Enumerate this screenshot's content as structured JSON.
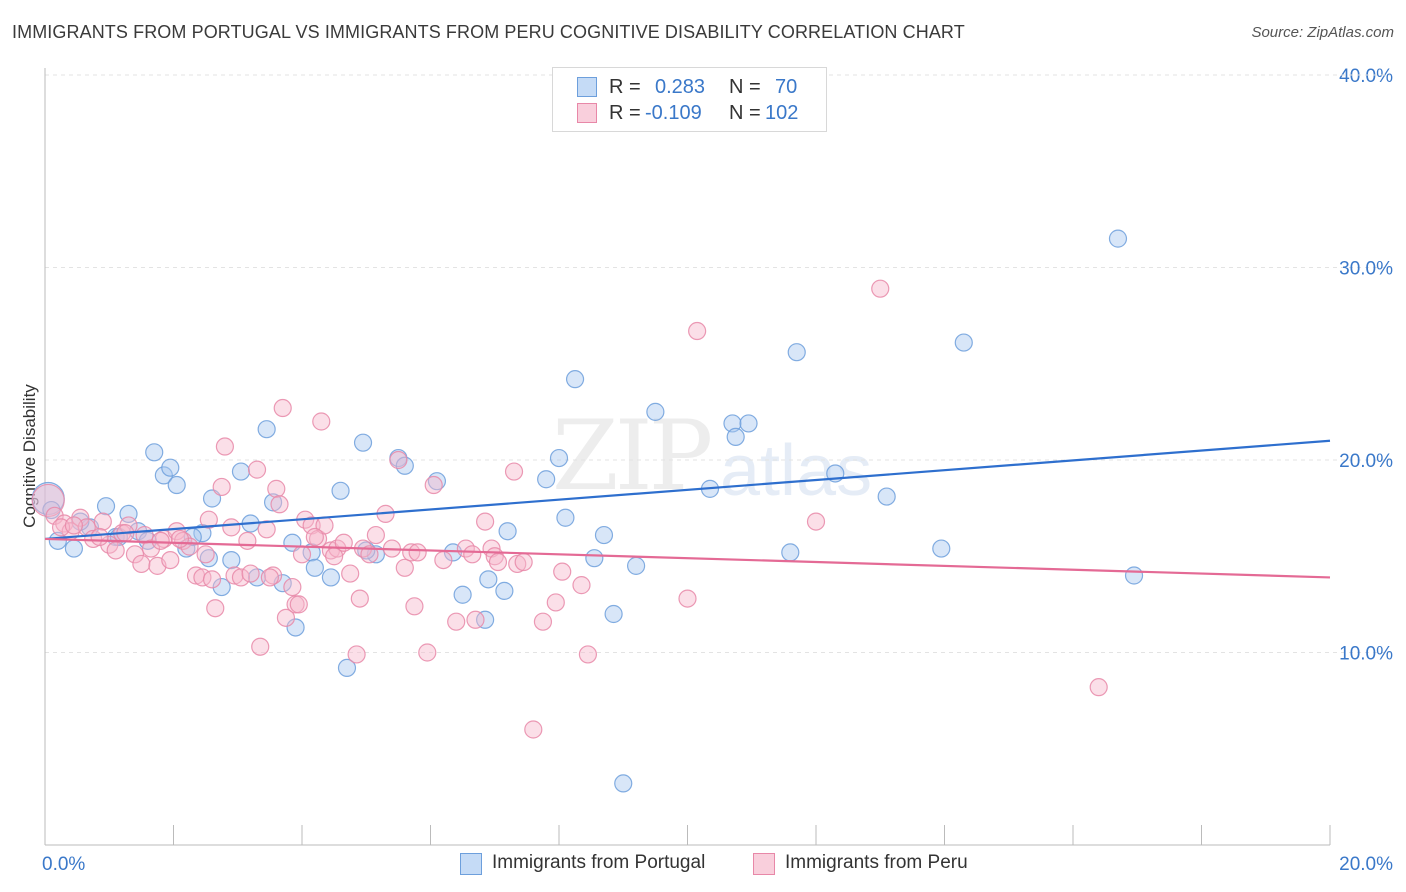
{
  "title": "IMMIGRANTS FROM PORTUGAL VS IMMIGRANTS FROM PERU COGNITIVE DISABILITY CORRELATION CHART",
  "source": "Source: ZipAtlas.com",
  "watermark": {
    "zip": "ZIP",
    "atlas": "atlas"
  },
  "legend": {
    "r_label": "R =",
    "n_label": "N =",
    "series": [
      {
        "r": "0.283",
        "n": "70",
        "color": "#a9c8f0",
        "border": "#6d9fdc"
      },
      {
        "r": "-0.109",
        "n": "102",
        "color": "#f7b8cc",
        "border": "#e888a8"
      }
    ]
  },
  "bottom_legend": [
    {
      "label": "Immigrants from Portugal",
      "color": "#a9c8f0",
      "border": "#6d9fdc"
    },
    {
      "label": "Immigrants from Peru",
      "color": "#f7b8cc",
      "border": "#e888a8"
    }
  ],
  "chart_data": {
    "type": "scatter",
    "title": "IMMIGRANTS FROM PORTUGAL VS IMMIGRANTS FROM PERU COGNITIVE DISABILITY CORRELATION CHART",
    "xlabel": "",
    "ylabel": "Cognitive Disability",
    "xlim": [
      0,
      20
    ],
    "ylim": [
      0,
      40
    ],
    "x_tick_labels": [
      "0.0%",
      "20.0%"
    ],
    "y_ticks": [
      10,
      20,
      30,
      40
    ],
    "y_tick_labels": [
      "10.0%",
      "20.0%",
      "30.0%",
      "40.0%"
    ],
    "grid": true,
    "legend_position": "top-center",
    "series": [
      {
        "name": "Immigrants from Portugal",
        "color": "#6d9fdc",
        "fill": "#a9c8f0",
        "trend": {
          "x": [
            0,
            20
          ],
          "y": [
            15.9,
            21.0
          ],
          "color": "#2e6fce"
        },
        "points": [
          [
            0.05,
            18.0
          ],
          [
            0.2,
            15.8
          ],
          [
            0.45,
            15.4
          ],
          [
            0.7,
            16.5
          ],
          [
            0.95,
            17.6
          ],
          [
            1.1,
            16.0
          ],
          [
            1.3,
            17.2
          ],
          [
            1.45,
            16.3
          ],
          [
            1.6,
            15.8
          ],
          [
            1.7,
            20.4
          ],
          [
            1.85,
            19.2
          ],
          [
            1.95,
            19.6
          ],
          [
            2.05,
            18.7
          ],
          [
            2.2,
            15.4
          ],
          [
            2.45,
            16.2
          ],
          [
            2.55,
            14.9
          ],
          [
            2.6,
            18.0
          ],
          [
            2.75,
            13.4
          ],
          [
            2.9,
            14.8
          ],
          [
            3.05,
            19.4
          ],
          [
            3.2,
            16.7
          ],
          [
            3.3,
            13.9
          ],
          [
            3.45,
            21.6
          ],
          [
            3.55,
            17.8
          ],
          [
            3.7,
            13.6
          ],
          [
            3.85,
            15.7
          ],
          [
            3.9,
            11.3
          ],
          [
            4.15,
            15.2
          ],
          [
            4.2,
            14.4
          ],
          [
            4.45,
            13.9
          ],
          [
            4.6,
            18.4
          ],
          [
            4.7,
            9.2
          ],
          [
            4.95,
            20.9
          ],
          [
            5.15,
            15.1
          ],
          [
            5.5,
            20.1
          ],
          [
            5.6,
            19.7
          ],
          [
            6.1,
            18.9
          ],
          [
            6.35,
            15.2
          ],
          [
            6.5,
            13.0
          ],
          [
            6.85,
            11.7
          ],
          [
            6.9,
            13.8
          ],
          [
            7.15,
            13.2
          ],
          [
            7.2,
            16.3
          ],
          [
            7.8,
            19.0
          ],
          [
            8.0,
            20.1
          ],
          [
            8.1,
            17.0
          ],
          [
            8.25,
            24.2
          ],
          [
            8.55,
            14.9
          ],
          [
            8.7,
            16.1
          ],
          [
            8.85,
            12.0
          ],
          [
            9.2,
            14.5
          ],
          [
            9.5,
            22.5
          ],
          [
            10.35,
            18.5
          ],
          [
            10.7,
            21.9
          ],
          [
            10.75,
            21.2
          ],
          [
            10.95,
            21.9
          ],
          [
            11.6,
            15.2
          ],
          [
            11.7,
            25.6
          ],
          [
            12.3,
            19.3
          ],
          [
            13.1,
            18.1
          ],
          [
            13.95,
            15.4
          ],
          [
            14.3,
            26.1
          ],
          [
            16.7,
            31.5
          ],
          [
            16.95,
            14.0
          ],
          [
            0.1,
            17.4
          ],
          [
            0.55,
            16.8
          ],
          [
            1.15,
            16.0
          ],
          [
            2.3,
            16.0
          ],
          [
            5.0,
            15.3
          ],
          [
            9.0,
            3.2
          ]
        ]
      },
      {
        "name": "Immigrants from Peru",
        "color": "#e888a8",
        "fill": "#f7b8cc",
        "trend": {
          "x": [
            0,
            20
          ],
          "y": [
            15.9,
            13.9
          ],
          "color": "#e46a95"
        },
        "points": [
          [
            0.05,
            17.9
          ],
          [
            0.15,
            17.1
          ],
          [
            0.3,
            16.7
          ],
          [
            0.4,
            16.3
          ],
          [
            0.55,
            17.0
          ],
          [
            0.65,
            16.5
          ],
          [
            0.75,
            15.9
          ],
          [
            0.9,
            16.8
          ],
          [
            1.0,
            15.6
          ],
          [
            1.1,
            15.3
          ],
          [
            1.2,
            16.2
          ],
          [
            1.3,
            16.6
          ],
          [
            1.4,
            15.1
          ],
          [
            1.5,
            14.6
          ],
          [
            1.55,
            16.1
          ],
          [
            1.65,
            15.4
          ],
          [
            1.75,
            14.5
          ],
          [
            1.85,
            15.9
          ],
          [
            1.95,
            14.8
          ],
          [
            2.05,
            16.3
          ],
          [
            2.15,
            15.8
          ],
          [
            2.25,
            15.5
          ],
          [
            2.35,
            14.0
          ],
          [
            2.45,
            13.9
          ],
          [
            2.55,
            16.9
          ],
          [
            2.6,
            13.8
          ],
          [
            2.65,
            12.3
          ],
          [
            2.75,
            18.6
          ],
          [
            2.8,
            20.7
          ],
          [
            2.9,
            16.5
          ],
          [
            2.95,
            14.0
          ],
          [
            3.05,
            13.9
          ],
          [
            3.15,
            15.8
          ],
          [
            3.2,
            14.1
          ],
          [
            3.3,
            19.5
          ],
          [
            3.35,
            10.3
          ],
          [
            3.45,
            16.4
          ],
          [
            3.55,
            14.0
          ],
          [
            3.6,
            18.5
          ],
          [
            3.65,
            17.7
          ],
          [
            3.7,
            22.7
          ],
          [
            3.75,
            11.8
          ],
          [
            3.85,
            13.4
          ],
          [
            3.9,
            12.5
          ],
          [
            4.0,
            15.1
          ],
          [
            4.05,
            16.9
          ],
          [
            4.15,
            16.6
          ],
          [
            4.25,
            15.9
          ],
          [
            4.3,
            22.0
          ],
          [
            4.35,
            16.6
          ],
          [
            4.45,
            15.3
          ],
          [
            4.55,
            15.4
          ],
          [
            4.65,
            15.7
          ],
          [
            4.75,
            14.1
          ],
          [
            4.85,
            9.9
          ],
          [
            4.9,
            12.8
          ],
          [
            4.95,
            15.4
          ],
          [
            5.05,
            15.1
          ],
          [
            5.15,
            16.1
          ],
          [
            5.3,
            17.2
          ],
          [
            5.4,
            15.4
          ],
          [
            5.5,
            20.0
          ],
          [
            5.6,
            14.4
          ],
          [
            5.7,
            15.2
          ],
          [
            5.75,
            12.4
          ],
          [
            5.95,
            10.0
          ],
          [
            6.05,
            18.7
          ],
          [
            6.2,
            14.8
          ],
          [
            6.4,
            11.6
          ],
          [
            6.55,
            15.4
          ],
          [
            6.65,
            15.1
          ],
          [
            6.85,
            16.8
          ],
          [
            6.95,
            15.4
          ],
          [
            7.0,
            15.0
          ],
          [
            7.05,
            14.7
          ],
          [
            7.3,
            19.4
          ],
          [
            7.35,
            14.6
          ],
          [
            7.6,
            6.0
          ],
          [
            7.75,
            11.6
          ],
          [
            7.95,
            12.6
          ],
          [
            8.05,
            14.2
          ],
          [
            8.35,
            13.5
          ],
          [
            8.45,
            9.9
          ],
          [
            10.0,
            12.8
          ],
          [
            10.15,
            26.7
          ],
          [
            12.0,
            16.8
          ],
          [
            13.0,
            28.9
          ],
          [
            16.4,
            8.2
          ],
          [
            0.25,
            16.5
          ],
          [
            0.85,
            16.0
          ],
          [
            1.25,
            16.2
          ],
          [
            2.1,
            15.9
          ],
          [
            3.95,
            12.5
          ],
          [
            4.5,
            15.0
          ],
          [
            5.8,
            15.2
          ],
          [
            1.8,
            15.8
          ],
          [
            2.5,
            15.1
          ],
          [
            3.5,
            13.9
          ],
          [
            4.2,
            16.0
          ],
          [
            6.7,
            11.7
          ],
          [
            7.45,
            14.7
          ],
          [
            0.45,
            16.6
          ]
        ]
      }
    ]
  }
}
